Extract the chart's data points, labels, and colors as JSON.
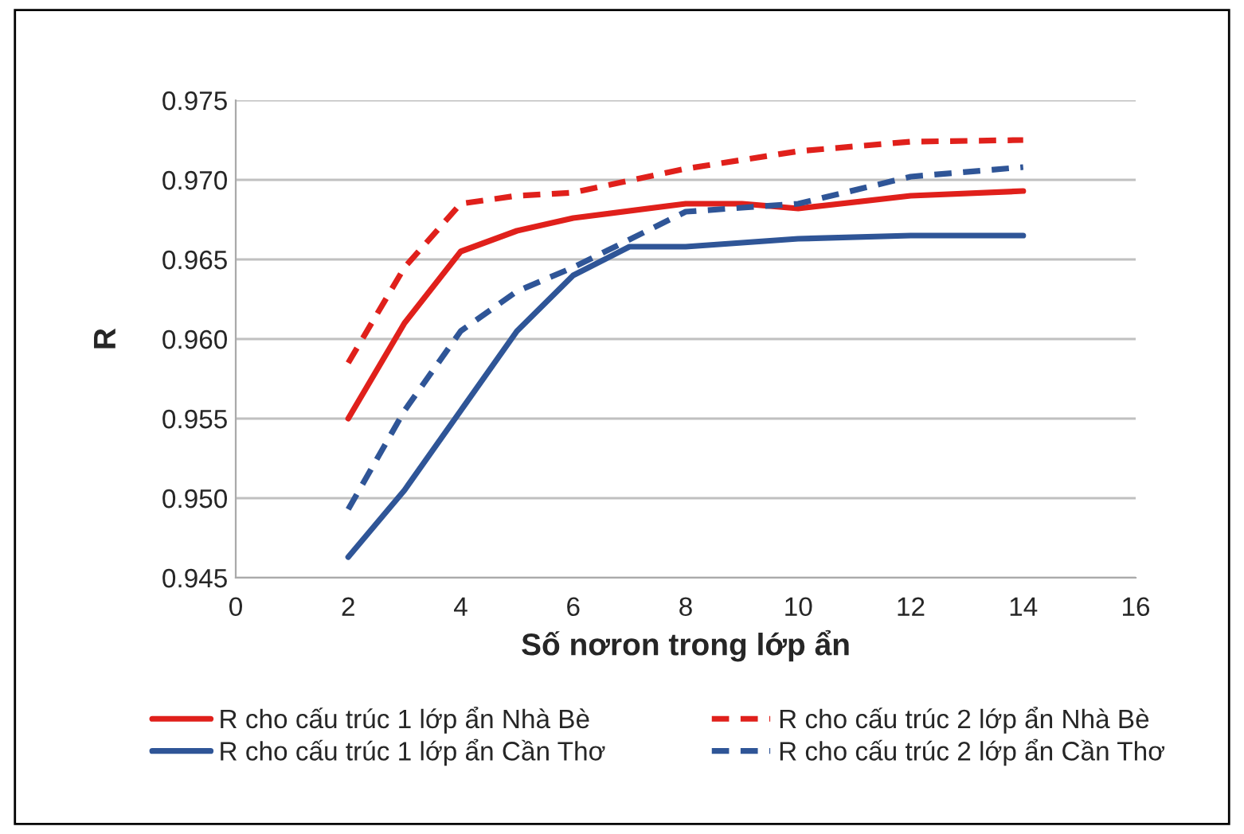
{
  "chart_data": {
    "type": "line",
    "xlabel": "Số nơron trong lớp ẩn",
    "ylabel": "R",
    "xlim": [
      0,
      16
    ],
    "xticks": [
      0,
      2,
      4,
      6,
      8,
      10,
      12,
      14,
      16
    ],
    "ylim": [
      0.945,
      0.975
    ],
    "yticks": [
      {
        "value": 0.945,
        "label": "0.945"
      },
      {
        "value": 0.95,
        "label": "0.950"
      },
      {
        "value": 0.955,
        "label": "0.955"
      },
      {
        "value": 0.96,
        "label": "0.960"
      },
      {
        "value": 0.965,
        "label": "0.965"
      },
      {
        "value": 0.97,
        "label": "0.970"
      },
      {
        "value": 0.975,
        "label": "0.975"
      }
    ],
    "grid": "y",
    "legend": "bottom",
    "marker": "none",
    "series": [
      {
        "name": "R cho cấu trúc 1 lớp ẩn Nhà Bè",
        "color": "#e0201b",
        "line_style": "solid",
        "x": [
          2,
          3,
          4,
          5,
          6,
          8,
          9,
          10,
          12,
          14
        ],
        "values": [
          0.955,
          0.961,
          0.9655,
          0.9668,
          0.9676,
          0.9685,
          0.9685,
          0.9682,
          0.969,
          0.9693
        ]
      },
      {
        "name": "R cho cấu trúc 2 lớp ẩn Nhà Bè",
        "color": "#e0201b",
        "line_style": "dashed",
        "x": [
          2,
          3,
          4,
          5,
          6,
          8,
          10,
          12,
          14
        ],
        "values": [
          0.9585,
          0.9645,
          0.9685,
          0.969,
          0.9692,
          0.9707,
          0.9718,
          0.9724,
          0.9725
        ]
      },
      {
        "name": "R cho cấu trúc 1 lớp ẩn Cần Thơ",
        "color": "#2f5597",
        "line_style": "solid",
        "x": [
          2,
          3,
          4,
          5,
          6,
          7,
          8,
          10,
          12,
          14
        ],
        "values": [
          0.9463,
          0.9505,
          0.9555,
          0.9605,
          0.964,
          0.9658,
          0.9658,
          0.9663,
          0.9665,
          0.9665
        ]
      },
      {
        "name": "R cho cấu trúc 2 lớp ẩn Cần Thơ",
        "color": "#2f5597",
        "line_style": "dashed",
        "x": [
          2,
          3,
          4,
          5,
          6,
          8,
          10,
          12,
          14
        ],
        "values": [
          0.9493,
          0.9555,
          0.9605,
          0.963,
          0.9645,
          0.968,
          0.9685,
          0.9702,
          0.9708
        ]
      }
    ]
  }
}
